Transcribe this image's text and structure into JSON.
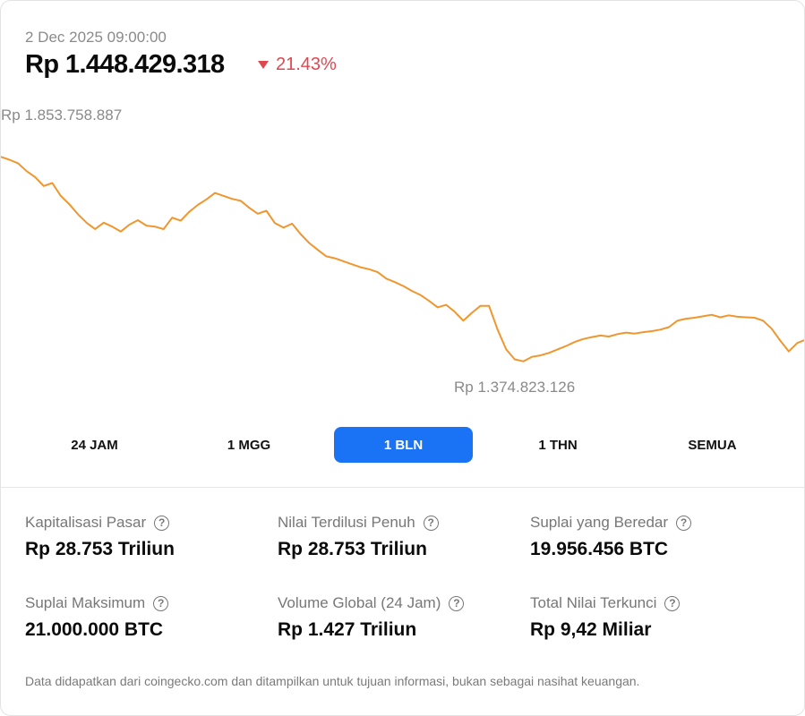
{
  "header": {
    "timestamp": "2 Dec 2025 09:00:00",
    "price": "Rp 1.448.429.318",
    "change": "21.43%",
    "change_direction": "down",
    "change_color": "#e0484f"
  },
  "chart_data": {
    "type": "line",
    "line_color": "#f0962e",
    "high_label": "Rp 1.853.758.887",
    "low_label": "Rp 1.374.823.126",
    "ylim": [
      1374823126,
      1853758887
    ],
    "values": [
      1801000000,
      1795000000,
      1788000000,
      1772000000,
      1760000000,
      1742000000,
      1748000000,
      1722000000,
      1705000000,
      1685000000,
      1668000000,
      1655000000,
      1668000000,
      1660000000,
      1650000000,
      1664000000,
      1673000000,
      1662000000,
      1660000000,
      1655000000,
      1678000000,
      1672000000,
      1690000000,
      1704000000,
      1715000000,
      1728000000,
      1722000000,
      1716000000,
      1712000000,
      1698000000,
      1686000000,
      1692000000,
      1667000000,
      1658000000,
      1666000000,
      1645000000,
      1627000000,
      1613000000,
      1600000000,
      1596000000,
      1590000000,
      1584000000,
      1578000000,
      1574000000,
      1568000000,
      1555000000,
      1548000000,
      1540000000,
      1530000000,
      1522000000,
      1510000000,
      1497000000,
      1502000000,
      1488000000,
      1470000000,
      1486000000,
      1500000000,
      1500000000,
      1452000000,
      1412000000,
      1392000000,
      1388000000,
      1397000000,
      1400000000,
      1405000000,
      1412000000,
      1419000000,
      1427000000,
      1433000000,
      1437000000,
      1440000000,
      1438000000,
      1443000000,
      1446000000,
      1444000000,
      1447000000,
      1449000000,
      1452000000,
      1457000000,
      1470000000,
      1474000000,
      1476000000,
      1479000000,
      1482000000,
      1477000000,
      1481000000,
      1478000000,
      1477000000,
      1476000000,
      1470000000,
      1454000000,
      1430000000,
      1408000000,
      1425000000,
      1432000000
    ]
  },
  "tabs": [
    {
      "label": "24 JAM",
      "active": false
    },
    {
      "label": "1 MGG",
      "active": false
    },
    {
      "label": "1 BLN",
      "active": true
    },
    {
      "label": "1 THN",
      "active": false
    },
    {
      "label": "SEMUA",
      "active": false
    }
  ],
  "stats": [
    {
      "label": "Kapitalisasi Pasar",
      "value": "Rp 28.753 Triliun"
    },
    {
      "label": "Nilai Terdilusi Penuh",
      "value": "Rp 28.753 Triliun"
    },
    {
      "label": "Suplai yang Beredar",
      "value": "19.956.456 BTC"
    },
    {
      "label": "Suplai Maksimum",
      "value": "21.000.000 BTC"
    },
    {
      "label": "Volume Global (24 Jam)",
      "value": "Rp 1.427 Triliun"
    },
    {
      "label": "Total Nilai Terkunci",
      "value": "Rp 9,42 Miliar"
    }
  ],
  "help_icon_glyph": "?",
  "disclaimer": "Data didapatkan dari coingecko.com dan ditampilkan untuk tujuan informasi, bukan sebagai nasihat keuangan."
}
